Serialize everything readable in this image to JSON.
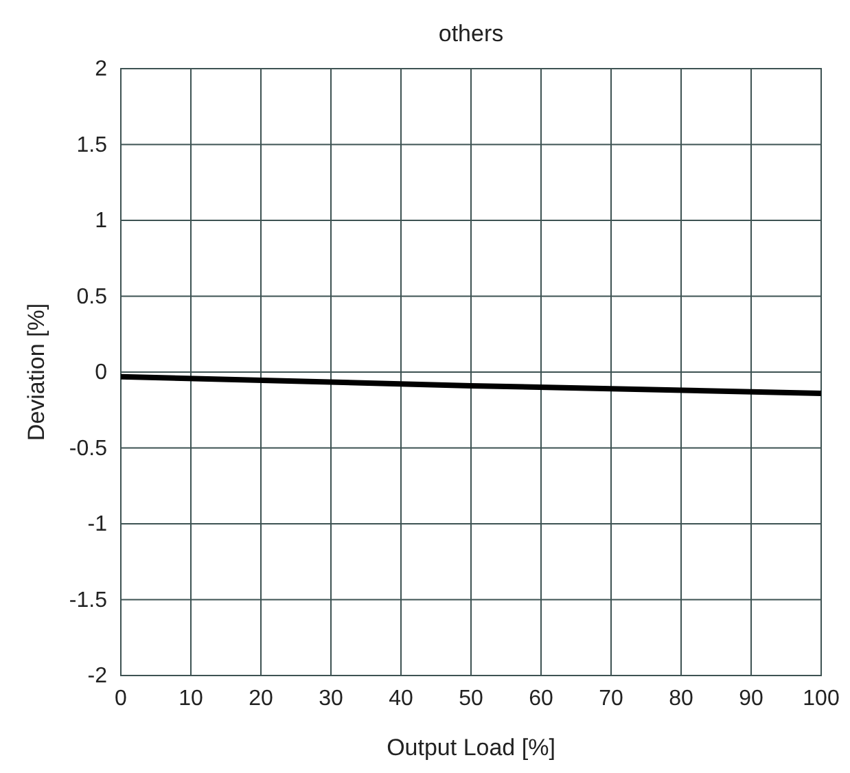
{
  "chart_data": {
    "type": "line",
    "title": "others",
    "xlabel": "Output Load [%]",
    "ylabel": "Deviation [%]",
    "x": [
      0,
      50,
      100
    ],
    "series": [
      {
        "color": "#000000",
        "values": [
          -0.03,
          -0.09,
          -0.14
        ]
      }
    ],
    "xlim": [
      0,
      100
    ],
    "xticks": [
      0,
      10,
      20,
      30,
      40,
      50,
      60,
      70,
      80,
      90,
      100
    ],
    "ylim": [
      -2,
      2
    ],
    "yticks": [
      -2,
      -1.5,
      -1,
      -0.5,
      0,
      0.5,
      1,
      1.5,
      2
    ],
    "grid": true,
    "marker": "none",
    "line_style": "solid"
  }
}
